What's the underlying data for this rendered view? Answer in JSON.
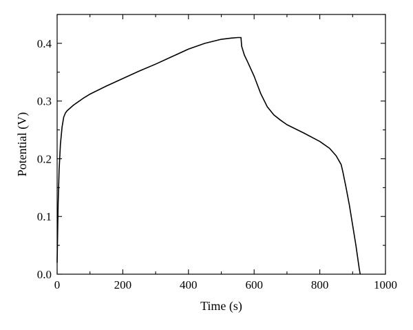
{
  "chart_data": {
    "type": "line",
    "title": "",
    "xlabel": "Time (s)",
    "ylabel": "Potential (V)",
    "xlim": [
      0,
      1000
    ],
    "ylim": [
      0,
      0.45
    ],
    "xticks": [
      0,
      200,
      400,
      600,
      800,
      1000
    ],
    "xtick_labels": [
      "0",
      "200",
      "400",
      "600",
      "800",
      "1000"
    ],
    "yticks": [
      0.0,
      0.1,
      0.2,
      0.3,
      0.4
    ],
    "ytick_labels": [
      "0.0",
      "0.1",
      "0.2",
      "0.3",
      "0.4"
    ],
    "grid": false,
    "legend": "none",
    "series": [
      {
        "x": [
          0,
          3,
          6,
          10,
          15,
          20,
          25,
          30,
          40,
          50,
          60,
          80,
          100,
          150,
          200,
          250,
          300,
          350,
          400,
          450,
          500,
          530,
          550,
          560,
          562,
          570,
          580,
          600,
          620,
          640,
          660,
          680,
          700,
          750,
          800,
          830,
          850,
          865,
          870,
          880,
          890,
          900,
          910,
          920,
          923
        ],
        "y": [
          0.02,
          0.12,
          0.18,
          0.225,
          0.255,
          0.272,
          0.279,
          0.283,
          0.288,
          0.293,
          0.297,
          0.305,
          0.312,
          0.326,
          0.339,
          0.352,
          0.364,
          0.377,
          0.39,
          0.4,
          0.407,
          0.409,
          0.41,
          0.41,
          0.395,
          0.38,
          0.368,
          0.343,
          0.313,
          0.29,
          0.276,
          0.267,
          0.259,
          0.245,
          0.23,
          0.218,
          0.205,
          0.19,
          0.178,
          0.15,
          0.12,
          0.085,
          0.05,
          0.01,
          0.0
        ]
      }
    ]
  }
}
